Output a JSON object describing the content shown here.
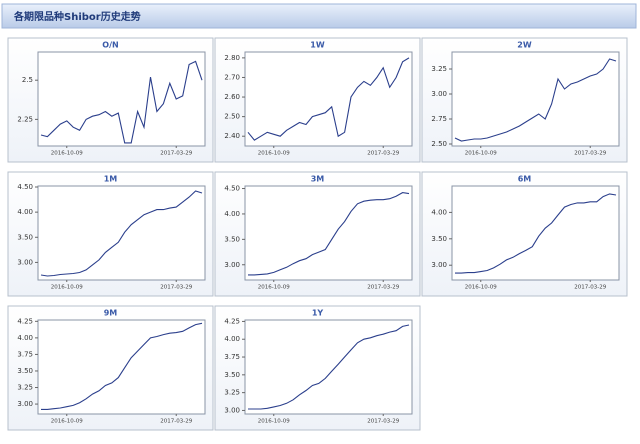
{
  "header": {
    "title": "各期限品种Shibor历史走势"
  },
  "chart_data": [
    {
      "type": "line",
      "title": "O/N",
      "color": "#2b3f8c",
      "categories": [
        null,
        null,
        null,
        null,
        "2016-10-09",
        null,
        null,
        null,
        null,
        null,
        null,
        null,
        null,
        null,
        null,
        null,
        null,
        null,
        null,
        null,
        null,
        "2017-03-29",
        null,
        null,
        null,
        null
      ],
      "values": [
        2.15,
        2.14,
        2.18,
        2.22,
        2.24,
        2.2,
        2.18,
        2.25,
        2.27,
        2.28,
        2.3,
        2.27,
        2.29,
        2.1,
        2.1,
        2.3,
        2.2,
        2.52,
        2.3,
        2.35,
        2.48,
        2.38,
        2.4,
        2.6,
        2.62,
        2.5
      ],
      "ylim": [
        2.08,
        2.68
      ],
      "yticks": [
        2.25,
        2.5
      ]
    },
    {
      "type": "line",
      "title": "1W",
      "color": "#2b3f8c",
      "categories": [
        null,
        null,
        null,
        null,
        "2016-10-09",
        null,
        null,
        null,
        null,
        null,
        null,
        null,
        null,
        null,
        null,
        null,
        null,
        null,
        null,
        null,
        null,
        "2017-03-29",
        null,
        null,
        null,
        null
      ],
      "values": [
        2.42,
        2.38,
        2.4,
        2.42,
        2.41,
        2.4,
        2.43,
        2.45,
        2.47,
        2.46,
        2.5,
        2.51,
        2.52,
        2.55,
        2.4,
        2.42,
        2.6,
        2.65,
        2.68,
        2.66,
        2.7,
        2.75,
        2.65,
        2.7,
        2.78,
        2.8
      ],
      "ylim": [
        2.35,
        2.83
      ],
      "yticks": [
        {
          "value": 2.4,
          "label": "2.40"
        },
        {
          "value": 2.5,
          "label": "2.50"
        },
        {
          "value": 2.6,
          "label": "2.60"
        },
        {
          "value": 2.7,
          "label": "2.70"
        },
        {
          "value": 2.8,
          "label": "2.80"
        }
      ]
    },
    {
      "type": "line",
      "title": "2W",
      "color": "#2b3f8c",
      "categories": [
        null,
        null,
        null,
        null,
        "2016-10-09",
        null,
        null,
        null,
        null,
        null,
        null,
        null,
        null,
        null,
        null,
        null,
        null,
        null,
        null,
        null,
        null,
        "2017-03-29",
        null,
        null,
        null,
        null
      ],
      "values": [
        2.56,
        2.53,
        2.54,
        2.55,
        2.55,
        2.56,
        2.58,
        2.6,
        2.62,
        2.65,
        2.68,
        2.72,
        2.76,
        2.8,
        2.75,
        2.9,
        3.15,
        3.05,
        3.1,
        3.12,
        3.15,
        3.18,
        3.2,
        3.25,
        3.35,
        3.33
      ],
      "ylim": [
        2.48,
        3.42
      ],
      "yticks": [
        {
          "value": 2.5,
          "label": "2.50"
        },
        2.75,
        {
          "value": 3.0,
          "label": "3.00"
        },
        3.25
      ]
    },
    {
      "type": "line",
      "title": "1M",
      "color": "#2b3f8c",
      "categories": [
        null,
        null,
        null,
        null,
        "2016-10-09",
        null,
        null,
        null,
        null,
        null,
        null,
        null,
        null,
        null,
        null,
        null,
        null,
        null,
        null,
        null,
        null,
        "2017-03-29",
        null,
        null,
        null,
        null
      ],
      "values": [
        2.75,
        2.73,
        2.74,
        2.76,
        2.77,
        2.78,
        2.8,
        2.85,
        2.95,
        3.05,
        3.2,
        3.3,
        3.4,
        3.6,
        3.75,
        3.85,
        3.95,
        4.0,
        4.05,
        4.05,
        4.08,
        4.1,
        4.2,
        4.3,
        4.42,
        4.38
      ],
      "ylim": [
        2.65,
        4.52
      ],
      "yticks": [
        {
          "value": 3.0,
          "label": "3.00"
        },
        {
          "value": 3.5,
          "label": "3.50"
        },
        {
          "value": 4.0,
          "label": "4.00"
        },
        {
          "value": 4.5,
          "label": "4.50"
        }
      ]
    },
    {
      "type": "line",
      "title": "3M",
      "color": "#2b3f8c",
      "categories": [
        null,
        null,
        null,
        null,
        "2016-10-09",
        null,
        null,
        null,
        null,
        null,
        null,
        null,
        null,
        null,
        null,
        null,
        null,
        null,
        null,
        null,
        null,
        "2017-03-29",
        null,
        null,
        null,
        null
      ],
      "values": [
        2.8,
        2.8,
        2.81,
        2.82,
        2.85,
        2.9,
        2.95,
        3.02,
        3.08,
        3.12,
        3.2,
        3.25,
        3.3,
        3.5,
        3.7,
        3.85,
        4.05,
        4.2,
        4.25,
        4.27,
        4.28,
        4.28,
        4.3,
        4.35,
        4.42,
        4.4
      ],
      "ylim": [
        2.7,
        4.55
      ],
      "yticks": [
        {
          "value": 3.0,
          "label": "3.00"
        },
        {
          "value": 3.5,
          "label": "3.50"
        },
        {
          "value": 4.0,
          "label": "4.00"
        },
        {
          "value": 4.5,
          "label": "4.50"
        }
      ]
    },
    {
      "type": "line",
      "title": "6M",
      "color": "#2b3f8c",
      "categories": [
        null,
        null,
        null,
        null,
        "2016-10-09",
        null,
        null,
        null,
        null,
        null,
        null,
        null,
        null,
        null,
        null,
        null,
        null,
        null,
        null,
        null,
        null,
        "2017-03-29",
        null,
        null,
        null,
        null
      ],
      "values": [
        2.85,
        2.85,
        2.86,
        2.86,
        2.88,
        2.9,
        2.95,
        3.02,
        3.1,
        3.15,
        3.22,
        3.28,
        3.35,
        3.55,
        3.7,
        3.8,
        3.95,
        4.1,
        4.15,
        4.18,
        4.18,
        4.2,
        4.2,
        4.3,
        4.35,
        4.33
      ],
      "ylim": [
        2.72,
        4.5
      ],
      "yticks": [
        {
          "value": 3.0,
          "label": "3.00"
        },
        {
          "value": 3.5,
          "label": "3.50"
        },
        {
          "value": 4.0,
          "label": "4.00"
        }
      ]
    },
    {
      "type": "line",
      "title": "9M",
      "color": "#2b3f8c",
      "categories": [
        null,
        null,
        null,
        null,
        "2016-10-09",
        null,
        null,
        null,
        null,
        null,
        null,
        null,
        null,
        null,
        null,
        null,
        null,
        null,
        null,
        null,
        null,
        "2017-03-29",
        null,
        null,
        null,
        null
      ],
      "values": [
        2.92,
        2.92,
        2.93,
        2.94,
        2.96,
        2.98,
        3.02,
        3.08,
        3.15,
        3.2,
        3.28,
        3.32,
        3.4,
        3.55,
        3.7,
        3.8,
        3.9,
        4.0,
        4.02,
        4.05,
        4.07,
        4.08,
        4.1,
        4.15,
        4.2,
        4.22
      ],
      "ylim": [
        2.85,
        4.27
      ],
      "yticks": [
        {
          "value": 3.0,
          "label": "3.00"
        },
        3.25,
        {
          "value": 3.5,
          "label": "3.50"
        },
        3.75,
        {
          "value": 4.0,
          "label": "4.00"
        },
        4.25
      ]
    },
    {
      "type": "line",
      "title": "1Y",
      "color": "#2b3f8c",
      "categories": [
        null,
        null,
        null,
        null,
        "2016-10-09",
        null,
        null,
        null,
        null,
        null,
        null,
        null,
        null,
        null,
        null,
        null,
        null,
        null,
        null,
        null,
        null,
        "2017-03-29",
        null,
        null,
        null,
        null
      ],
      "values": [
        3.02,
        3.02,
        3.02,
        3.03,
        3.05,
        3.07,
        3.1,
        3.15,
        3.22,
        3.28,
        3.35,
        3.38,
        3.45,
        3.55,
        3.65,
        3.75,
        3.85,
        3.95,
        4.0,
        4.02,
        4.05,
        4.07,
        4.1,
        4.12,
        4.18,
        4.2
      ],
      "ylim": [
        2.95,
        4.27
      ],
      "yticks": [
        {
          "value": 3.0,
          "label": "3.00"
        },
        3.25,
        {
          "value": 3.5,
          "label": "3.50"
        },
        3.75,
        {
          "value": 4.0,
          "label": "4.00"
        },
        4.25
      ]
    }
  ]
}
